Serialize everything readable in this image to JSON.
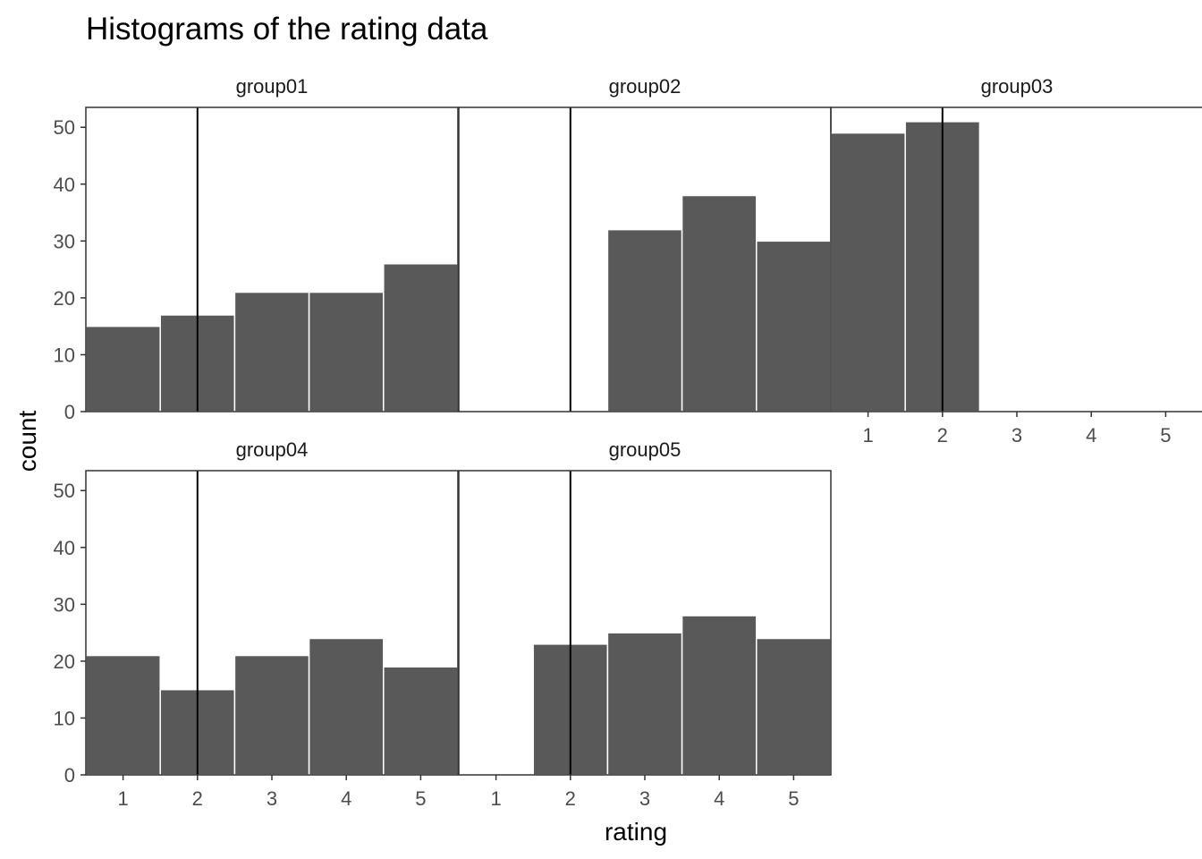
{
  "chart_data": {
    "type": "bar",
    "title": "Histograms of the rating data",
    "xlabel": "rating",
    "ylabel": "count",
    "x_ticks": [
      "1",
      "2",
      "3",
      "4",
      "5"
    ],
    "y_ticks": [
      "0",
      "10",
      "20",
      "30",
      "40",
      "50"
    ],
    "ylim": [
      0,
      53.5
    ],
    "xlim": [
      0.5,
      5.5
    ],
    "reference_line_x": 2,
    "grid": false,
    "colors": {
      "bar_fill": "#595959",
      "bar_outline": "#ffffff",
      "panel_border": "#333333",
      "reference_line": "#000000"
    },
    "panels": [
      {
        "name": "group01",
        "categories": [
          1,
          2,
          3,
          4,
          5
        ],
        "values": [
          15,
          17,
          21,
          21,
          26
        ]
      },
      {
        "name": "group02",
        "categories": [
          1,
          2,
          3,
          4,
          5
        ],
        "values": [
          0,
          0,
          32,
          38,
          30
        ]
      },
      {
        "name": "group03",
        "categories": [
          1,
          2,
          3,
          4,
          5
        ],
        "values": [
          49,
          51,
          0,
          0,
          0
        ]
      },
      {
        "name": "group04",
        "categories": [
          1,
          2,
          3,
          4,
          5
        ],
        "values": [
          21,
          15,
          21,
          24,
          19
        ]
      },
      {
        "name": "group05",
        "categories": [
          1,
          2,
          3,
          4,
          5
        ],
        "values": [
          0,
          23,
          25,
          28,
          24
        ]
      }
    ]
  }
}
